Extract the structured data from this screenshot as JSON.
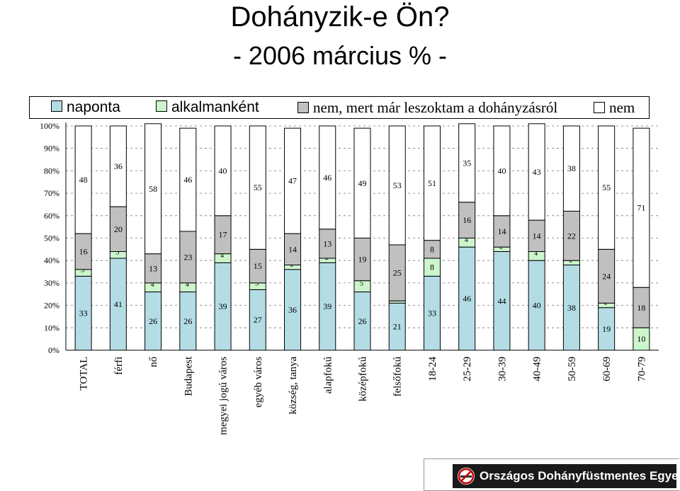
{
  "title": "Dohányzik-e Ön?",
  "subtitle": "- 2006 március % -",
  "legend": [
    {
      "label": "naponta",
      "color": "#b4dce4"
    },
    {
      "label": "alkalmanként",
      "color": "#ccf5cc"
    },
    {
      "label": "nem, mert már leszoktam a dohányzásról",
      "color": "#c0c0c0"
    },
    {
      "label": "nem",
      "color": "#ffffff"
    }
  ],
  "footer": {
    "organization": "Országos Dohányfüstmentes Egyesület",
    "logo_icon": "no-smoking-icon"
  },
  "chart_data": {
    "type": "stacked-bar",
    "title": "Dohányzik-e Ön?",
    "subtitle": "- 2006 március % -",
    "categories": [
      "TOTAL",
      "férfi",
      "nő",
      "Budapest",
      "megyei jogú város",
      "egyéb város",
      "község, tanya",
      "alapfokú",
      "középfokú",
      "felsőfokú",
      "18-24",
      "25-29",
      "30-39",
      "40-49",
      "50-59",
      "60-69",
      "70-79"
    ],
    "series": [
      {
        "name": "naponta",
        "color": "#b4dce4",
        "values": [
          33,
          41,
          26,
          26,
          39,
          27,
          36,
          39,
          26,
          21,
          33,
          46,
          44,
          40,
          38,
          19,
          0
        ]
      },
      {
        "name": "alkalmanként",
        "color": "#ccf5cc",
        "values": [
          3,
          3,
          4,
          4,
          4,
          3,
          2,
          2,
          5,
          1,
          8,
          4,
          2,
          4,
          2,
          2,
          10
        ]
      },
      {
        "name": "nem, mert már leszoktam a dohányzásról",
        "color": "#c0c0c0",
        "values": [
          16,
          20,
          13,
          23,
          17,
          15,
          14,
          13,
          19,
          25,
          8,
          16,
          14,
          14,
          22,
          24,
          18
        ]
      },
      {
        "name": "nem",
        "color": "#ffffff",
        "values": [
          48,
          36,
          58,
          46,
          40,
          55,
          47,
          46,
          49,
          53,
          51,
          35,
          40,
          43,
          38,
          55,
          71
        ]
      }
    ],
    "yticks": [
      "0%",
      "10%",
      "20%",
      "30%",
      "40%",
      "50%",
      "60%",
      "70%",
      "80%",
      "90%",
      "100%"
    ],
    "ylim": [
      0,
      100
    ],
    "grid": true,
    "legend_position": "top"
  }
}
